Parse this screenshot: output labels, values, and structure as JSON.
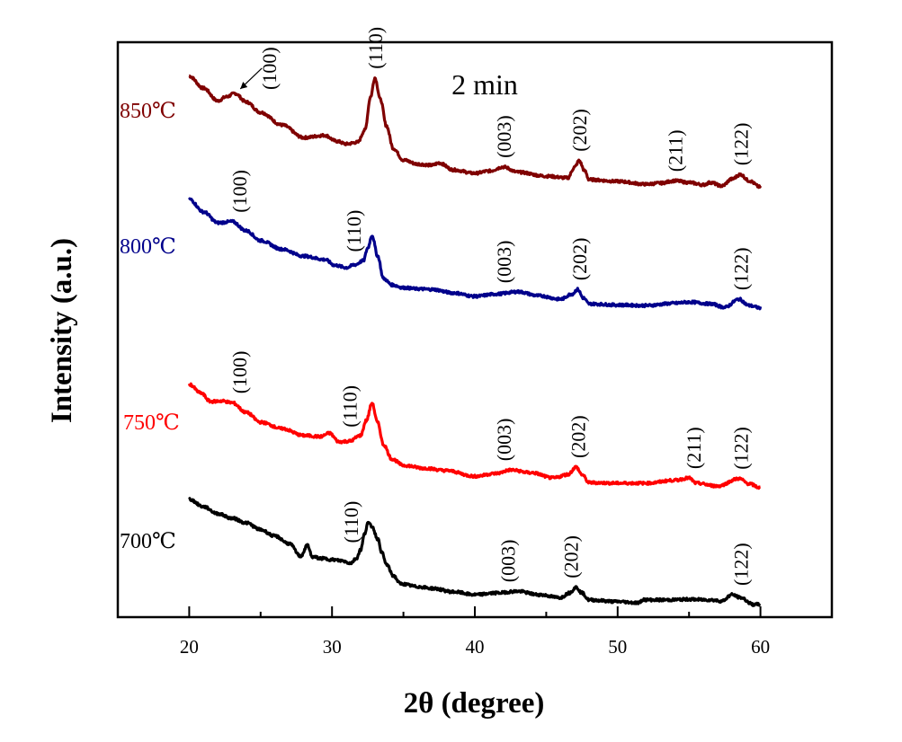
{
  "chart_data": {
    "type": "line",
    "title": "",
    "annotation": "2 min",
    "xlabel": "2θ (degree)",
    "ylabel": "Intensity (a.u.)",
    "xlim": [
      15,
      65
    ],
    "ylim": [
      0,
      100
    ],
    "xticks": [
      20,
      30,
      40,
      50,
      60
    ],
    "xticks_minor": [
      25,
      35,
      45,
      55
    ],
    "yticks": [],
    "grid": false,
    "legend": "inline-left",
    "series": [
      {
        "name": "850℃",
        "label": "850℃",
        "color": "#7f0000",
        "points": [
          [
            20,
            94.1
          ],
          [
            21,
            92.0
          ],
          [
            22,
            89.8
          ],
          [
            22.6,
            90.5
          ],
          [
            23.2,
            91.1
          ],
          [
            24,
            89.6
          ],
          [
            25,
            87.8
          ],
          [
            26.5,
            85.6
          ],
          [
            28,
            83.4
          ],
          [
            29.5,
            83.8
          ],
          [
            30.3,
            82.8
          ],
          [
            31,
            82.3
          ],
          [
            31.8,
            82.6
          ],
          [
            32.3,
            84.7
          ],
          [
            32.7,
            90.5
          ],
          [
            33,
            93.8
          ],
          [
            33.4,
            90.0
          ],
          [
            33.8,
            85.5
          ],
          [
            34.3,
            81.5
          ],
          [
            35,
            79.5
          ],
          [
            36,
            78.8
          ],
          [
            37,
            78.6
          ],
          [
            37.5,
            79.0
          ],
          [
            38.5,
            77.8
          ],
          [
            40,
            77.2
          ],
          [
            41,
            77.6
          ],
          [
            42,
            78.3
          ],
          [
            43,
            77.4
          ],
          [
            45,
            76.7
          ],
          [
            46.5,
            76.4
          ],
          [
            47,
            78.3
          ],
          [
            47.3,
            79.4
          ],
          [
            47.7,
            77.6
          ],
          [
            48,
            76.1
          ],
          [
            50,
            75.8
          ],
          [
            52,
            75.3
          ],
          [
            53,
            75.5
          ],
          [
            54,
            75.9
          ],
          [
            55,
            75.6
          ],
          [
            56,
            75.2
          ],
          [
            56.5,
            75.6
          ],
          [
            57.3,
            75.0
          ],
          [
            58,
            76.2
          ],
          [
            58.6,
            77.0
          ],
          [
            59.2,
            75.9
          ],
          [
            60,
            74.8
          ]
        ],
        "peaks": [
          {
            "hkl": "(100)",
            "x": 23.2,
            "arrow": true
          },
          {
            "hkl": "(110)",
            "x": 33.0
          },
          {
            "hkl": "(003)",
            "x": 42.0
          },
          {
            "hkl": "(202)",
            "x": 47.3
          },
          {
            "hkl": "(211)",
            "x": 54.0
          },
          {
            "hkl": "(122)",
            "x": 58.6
          }
        ]
      },
      {
        "name": "800℃",
        "label": "800℃",
        "color": "#00008b",
        "points": [
          [
            20,
            72.7
          ],
          [
            21,
            70.5
          ],
          [
            22,
            68.6
          ],
          [
            23,
            68.8
          ],
          [
            24,
            67.2
          ],
          [
            25,
            65.5
          ],
          [
            26.5,
            64.0
          ],
          [
            28,
            62.8
          ],
          [
            29.5,
            62.2
          ],
          [
            30.2,
            61.2
          ],
          [
            31,
            60.8
          ],
          [
            31.6,
            61.3
          ],
          [
            32.2,
            62.0
          ],
          [
            32.5,
            64.2
          ],
          [
            32.8,
            66.4
          ],
          [
            33.2,
            62.8
          ],
          [
            33.6,
            58.9
          ],
          [
            34.2,
            57.8
          ],
          [
            35,
            57.3
          ],
          [
            36,
            57.1
          ],
          [
            37,
            57.0
          ],
          [
            38.5,
            56.4
          ],
          [
            40,
            55.8
          ],
          [
            41.5,
            56.2
          ],
          [
            43,
            56.6
          ],
          [
            44.5,
            55.9
          ],
          [
            46,
            55.3
          ],
          [
            46.8,
            56.2
          ],
          [
            47.2,
            57.0
          ],
          [
            47.6,
            55.5
          ],
          [
            48,
            54.5
          ],
          [
            50,
            54.3
          ],
          [
            52,
            54.2
          ],
          [
            54,
            54.6
          ],
          [
            55,
            54.8
          ],
          [
            56.5,
            54.5
          ],
          [
            57.5,
            53.9
          ],
          [
            58.5,
            55.3
          ],
          [
            59.2,
            54.2
          ],
          [
            60,
            53.8
          ]
        ],
        "peaks": [
          {
            "hkl": "(100)",
            "x": 23.5
          },
          {
            "hkl": "(110)",
            "x": 31.5
          },
          {
            "hkl": "(003)",
            "x": 42.0
          },
          {
            "hkl": "(202)",
            "x": 47.3
          },
          {
            "hkl": "(122)",
            "x": 58.6
          }
        ]
      },
      {
        "name": "750℃",
        "label": "750℃",
        "color": "#ff0000",
        "points": [
          [
            20,
            40.5
          ],
          [
            20.8,
            39.0
          ],
          [
            21.5,
            37.5
          ],
          [
            22.3,
            37.6
          ],
          [
            23,
            37.3
          ],
          [
            24,
            35.6
          ],
          [
            25,
            33.9
          ],
          [
            26.5,
            32.8
          ],
          [
            28,
            31.6
          ],
          [
            29.2,
            31.4
          ],
          [
            29.8,
            32.0
          ],
          [
            30.5,
            30.5
          ],
          [
            31.2,
            30.6
          ],
          [
            32,
            31.6
          ],
          [
            32.4,
            34.2
          ],
          [
            32.8,
            37.2
          ],
          [
            33.2,
            33.8
          ],
          [
            33.6,
            30.0
          ],
          [
            34.2,
            27.5
          ],
          [
            35,
            26.4
          ],
          [
            36.5,
            25.9
          ],
          [
            38,
            25.5
          ],
          [
            40,
            24.5
          ],
          [
            41.5,
            25.0
          ],
          [
            42.5,
            25.6
          ],
          [
            44,
            25.1
          ],
          [
            45.5,
            24.2
          ],
          [
            46.5,
            24.8
          ],
          [
            47.1,
            26.1
          ],
          [
            47.5,
            24.8
          ],
          [
            48,
            23.4
          ],
          [
            50,
            23.3
          ],
          [
            52,
            23.3
          ],
          [
            54,
            23.8
          ],
          [
            55,
            24.2
          ],
          [
            55.5,
            23.3
          ],
          [
            57,
            22.8
          ],
          [
            58.5,
            24.1
          ],
          [
            59.2,
            23.2
          ],
          [
            60,
            22.5
          ]
        ],
        "peaks": [
          {
            "hkl": "(100)",
            "x": 23.5
          },
          {
            "hkl": "(110)",
            "x": 31.2
          },
          {
            "hkl": "(003)",
            "x": 42.0
          },
          {
            "hkl": "(202)",
            "x": 47.2
          },
          {
            "hkl": "(211)",
            "x": 55.3
          },
          {
            "hkl": "(122)",
            "x": 58.6
          }
        ]
      },
      {
        "name": "700℃",
        "label": "700℃",
        "color": "#000000",
        "points": [
          [
            20,
            20.5
          ],
          [
            21,
            19.2
          ],
          [
            22,
            18.0
          ],
          [
            23,
            17.2
          ],
          [
            24,
            16.4
          ],
          [
            25,
            15.2
          ],
          [
            26,
            14.1
          ],
          [
            27,
            12.8
          ],
          [
            27.8,
            10.6
          ],
          [
            28.3,
            12.5
          ],
          [
            28.6,
            10.5
          ],
          [
            29.3,
            10.2
          ],
          [
            30,
            10.0
          ],
          [
            30.7,
            9.8
          ],
          [
            31.3,
            9.4
          ],
          [
            31.7,
            10.2
          ],
          [
            32,
            11.7
          ],
          [
            32.3,
            14.6
          ],
          [
            32.5,
            16.4
          ],
          [
            32.8,
            15.8
          ],
          [
            33.2,
            13.6
          ],
          [
            33.5,
            11.2
          ],
          [
            33.8,
            9.2
          ],
          [
            34.3,
            7.2
          ],
          [
            34.8,
            5.8
          ],
          [
            36,
            5.3
          ],
          [
            37,
            5.0
          ],
          [
            38.5,
            4.4
          ],
          [
            40,
            3.9
          ],
          [
            41.5,
            4.2
          ],
          [
            43,
            4.5
          ],
          [
            44.5,
            3.9
          ],
          [
            46,
            3.4
          ],
          [
            46.6,
            4.2
          ],
          [
            47.1,
            5.2
          ],
          [
            47.5,
            4.2
          ],
          [
            48,
            3.0
          ],
          [
            50,
            2.7
          ],
          [
            51.5,
            2.5
          ],
          [
            51.8,
            3.1
          ],
          [
            52,
            3.0
          ],
          [
            53.5,
            3.0
          ],
          [
            55,
            3.1
          ],
          [
            56.5,
            3.0
          ],
          [
            57.3,
            2.8
          ],
          [
            58,
            3.9
          ],
          [
            58.6,
            3.4
          ],
          [
            59.5,
            2.2
          ],
          [
            60,
            2.2
          ]
        ],
        "peaks": [
          {
            "hkl": "(110)",
            "x": 31.3
          },
          {
            "hkl": "(003)",
            "x": 42.3
          },
          {
            "hkl": "(202)",
            "x": 46.7
          },
          {
            "hkl": "(122)",
            "x": 58.6
          }
        ]
      }
    ]
  }
}
